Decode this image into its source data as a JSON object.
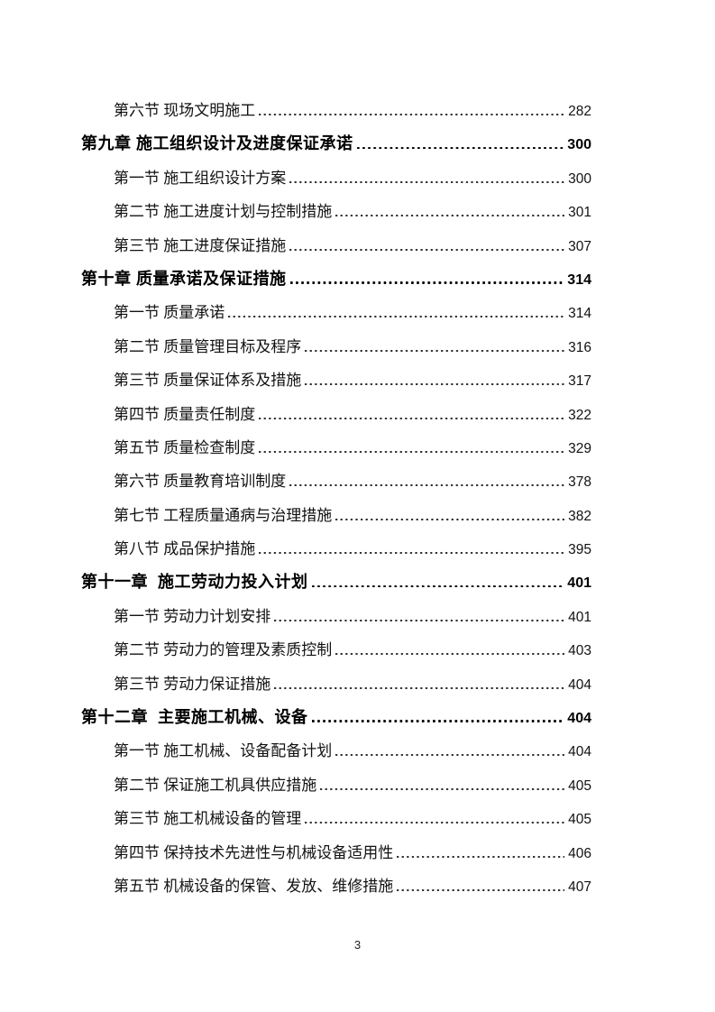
{
  "page": {
    "footer_page_number": "3"
  },
  "toc": {
    "entries": [
      {
        "level": "section",
        "label": "第六节 现场文明施工",
        "page": "282"
      },
      {
        "level": "chapter",
        "label": "第九章 施工组织设计及进度保证承诺",
        "page": "300"
      },
      {
        "level": "section",
        "label": "第一节 施工组织设计方案",
        "page": "300"
      },
      {
        "level": "section",
        "label": "第二节 施工进度计划与控制措施",
        "page": "301"
      },
      {
        "level": "section",
        "label": "第三节 施工进度保证措施",
        "page": "307"
      },
      {
        "level": "chapter",
        "label": "第十章 质量承诺及保证措施",
        "page": "314"
      },
      {
        "level": "section",
        "label": "第一节 质量承诺",
        "page": "314"
      },
      {
        "level": "section",
        "label": "第二节 质量管理目标及程序",
        "page": "316"
      },
      {
        "level": "section",
        "label": "第三节 质量保证体系及措施",
        "page": "317"
      },
      {
        "level": "section",
        "label": "第四节 质量责任制度",
        "page": "322"
      },
      {
        "level": "section",
        "label": "第五节 质量检查制度",
        "page": "329"
      },
      {
        "level": "section",
        "label": "第六节 质量教育培训制度",
        "page": "378"
      },
      {
        "level": "section",
        "label": "第七节 工程质量通病与治理措施",
        "page": "382"
      },
      {
        "level": "section",
        "label": "第八节 成品保护措施",
        "page": "395"
      },
      {
        "level": "chapter",
        "label": "第十一章  施工劳动力投入计划",
        "page": "401"
      },
      {
        "level": "section",
        "label": "第一节 劳动力计划安排",
        "page": "401"
      },
      {
        "level": "section",
        "label": "第二节 劳动力的管理及素质控制",
        "page": "403"
      },
      {
        "level": "section",
        "label": "第三节 劳动力保证措施",
        "page": "404"
      },
      {
        "level": "chapter",
        "label": "第十二章  主要施工机械、设备",
        "page": "404"
      },
      {
        "level": "section",
        "label": "第一节 施工机械、设备配备计划",
        "page": "404"
      },
      {
        "level": "section",
        "label": "第二节 保证施工机具供应措施",
        "page": "405"
      },
      {
        "level": "section",
        "label": "第三节 施工机械设备的管理",
        "page": "405"
      },
      {
        "level": "section",
        "label": "第四节 保持技术先进性与机械设备适用性",
        "page": "406"
      },
      {
        "level": "section",
        "label": "第五节 机械设备的保管、发放、维修措施",
        "page": "407"
      }
    ]
  }
}
